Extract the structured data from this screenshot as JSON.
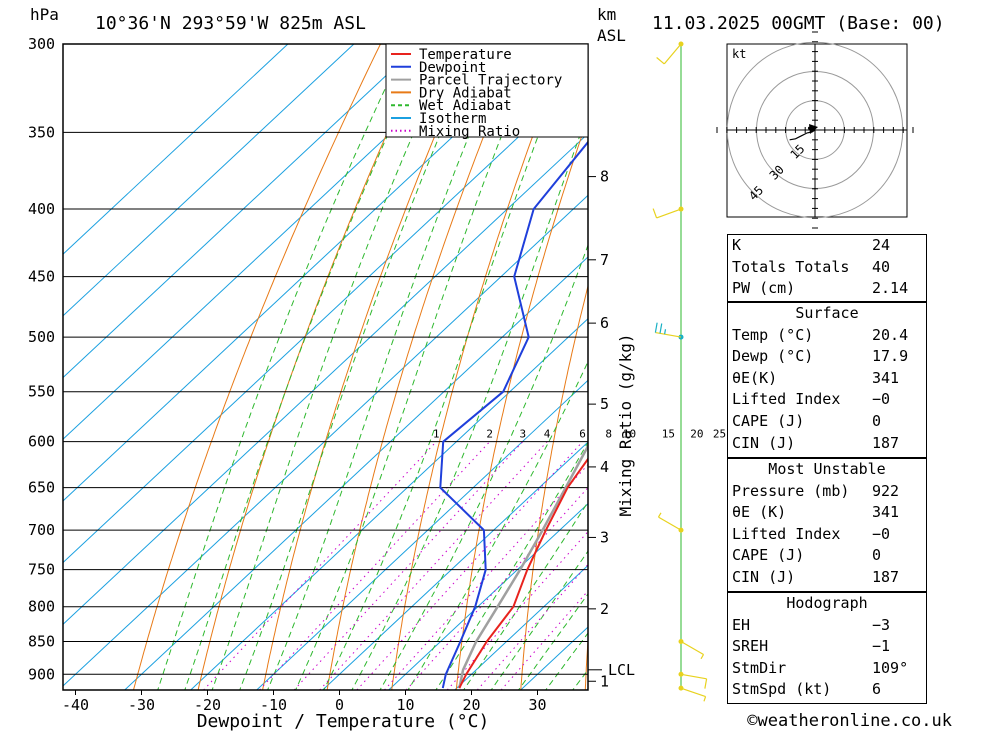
{
  "header": {
    "pressure_unit": "hPa",
    "location": "10°36'N 293°59'W 825m ASL",
    "height_unit_1": "km",
    "height_unit_2": "ASL",
    "valid_time": "11.03.2025 00GMT (Base: 00)"
  },
  "chart_data": {
    "type": "skew-t",
    "xlabel": "Dewpoint / Temperature (°C)",
    "ylabel": "hPa",
    "right_axis_label": "Mixing Ratio (g/kg)",
    "x_ticks": [
      -40,
      -30,
      -20,
      -10,
      0,
      10,
      20,
      30
    ],
    "p_ticks": [
      300,
      350,
      400,
      450,
      500,
      550,
      600,
      650,
      700,
      750,
      800,
      850,
      900
    ],
    "km_ticks": [
      {
        "km": "8",
        "p": 378
      },
      {
        "km": "7",
        "p": 437
      },
      {
        "km": "6",
        "p": 488
      },
      {
        "km": "5",
        "p": 562
      },
      {
        "km": "4",
        "p": 627
      },
      {
        "km": "3",
        "p": 709
      },
      {
        "km": "2",
        "p": 803
      },
      {
        "km": "1",
        "p": 911
      }
    ],
    "lcl_label": "LCL",
    "lcl_p": 893,
    "mixing_ratio_labels": [
      "1",
      "2",
      "3",
      "4",
      "6",
      "8",
      "10",
      "15",
      "20",
      "25"
    ],
    "legend": [
      {
        "name": "Temperature",
        "color": "#e8231e",
        "style": "solid"
      },
      {
        "name": "Dewpoint",
        "color": "#1f3fdb",
        "style": "solid"
      },
      {
        "name": "Parcel Trajectory",
        "color": "#a0a0a0",
        "style": "solid"
      },
      {
        "name": "Dry Adiabat",
        "color": "#e87a17",
        "style": "solid"
      },
      {
        "name": "Wet Adiabat",
        "color": "#2eb82e",
        "style": "dashed"
      },
      {
        "name": "Isotherm",
        "color": "#1ba0e0",
        "style": "solid"
      },
      {
        "name": "Mixing Ratio",
        "color": "#cc00cc",
        "style": "dotted"
      }
    ],
    "series": [
      {
        "name": "Temperature",
        "points": [
          [
            922,
            20.4
          ],
          [
            900,
            19.2
          ],
          [
            850,
            17.0
          ],
          [
            800,
            15.4
          ],
          [
            750,
            11.5
          ],
          [
            700,
            7.9
          ],
          [
            650,
            4.3
          ],
          [
            600,
            1.8
          ],
          [
            550,
            -0.9
          ],
          [
            500,
            -6.3
          ],
          [
            450,
            -11.5
          ],
          [
            400,
            -18.2
          ],
          [
            350,
            -26.0
          ],
          [
            300,
            -35.5
          ]
        ]
      },
      {
        "name": "Dewpoint",
        "points": [
          [
            922,
            17.9
          ],
          [
            900,
            16.1
          ],
          [
            850,
            13.0
          ],
          [
            800,
            9.6
          ],
          [
            750,
            5.2
          ],
          [
            700,
            -1.5
          ],
          [
            650,
            -15.0
          ],
          [
            600,
            -22.0
          ],
          [
            550,
            -21.0
          ],
          [
            500,
            -26.0
          ],
          [
            450,
            -38.0
          ],
          [
            400,
            -46.0
          ],
          [
            350,
            -49.0
          ],
          [
            300,
            -56.0
          ]
        ]
      },
      {
        "name": "Parcel Trajectory",
        "points": [
          [
            922,
            20.4
          ],
          [
            893,
            18.0
          ],
          [
            850,
            15.4
          ],
          [
            800,
            13.0
          ],
          [
            750,
            10.4
          ],
          [
            700,
            7.4
          ],
          [
            650,
            4.0
          ],
          [
            600,
            0.3
          ],
          [
            550,
            -3.7
          ],
          [
            500,
            -8.4
          ],
          [
            450,
            -13.8
          ],
          [
            400,
            -20.5
          ],
          [
            350,
            -28.6
          ],
          [
            320,
            -33.5
          ]
        ]
      }
    ],
    "wind_barbs": [
      {
        "p": 922,
        "dir": 109,
        "spd": 6
      },
      {
        "p": 900,
        "dir": 100,
        "spd": 10
      },
      {
        "p": 850,
        "dir": 120,
        "spd": 5
      },
      {
        "p": 700,
        "dir": 300,
        "spd": 5
      },
      {
        "p": 500,
        "dir": 280,
        "spd": 25
      },
      {
        "p": 400,
        "dir": 250,
        "spd": 10
      },
      {
        "p": 300,
        "dir": 220,
        "spd": 10
      }
    ],
    "hodograph": {
      "unit": "kt",
      "ring_labels": [
        "15",
        "30",
        "45"
      ],
      "points": [
        [
          -1.5,
          -1.0
        ],
        [
          -4.0,
          -1.5
        ],
        [
          -7.0,
          -3.0
        ],
        [
          -10.0,
          -4.5
        ],
        [
          -13.0,
          -5.0
        ]
      ],
      "storm_motion": {
        "dir": 109,
        "spd": 6
      }
    }
  },
  "indices": {
    "rows": [
      {
        "label": "K",
        "value": "24"
      },
      {
        "label": "Totals Totals",
        "value": "40"
      },
      {
        "label": "PW (cm)",
        "value": "2.14"
      }
    ]
  },
  "surface": {
    "title": "Surface",
    "rows": [
      {
        "label": "Temp (°C)",
        "value": "20.4"
      },
      {
        "label": "Dewp (°C)",
        "value": "17.9"
      },
      {
        "label": "θE(K)",
        "value": "341"
      },
      {
        "label": "Lifted Index",
        "value": "−0"
      },
      {
        "label": "CAPE (J)",
        "value": "0"
      },
      {
        "label": "CIN (J)",
        "value": "187"
      }
    ]
  },
  "most_unstable": {
    "title": "Most Unstable",
    "rows": [
      {
        "label": "Pressure (mb)",
        "value": "922"
      },
      {
        "label": "θE (K)",
        "value": "341"
      },
      {
        "label": "Lifted Index",
        "value": "−0"
      },
      {
        "label": "CAPE (J)",
        "value": "0"
      },
      {
        "label": "CIN (J)",
        "value": "187"
      }
    ]
  },
  "hodograph_table": {
    "title": "Hodograph",
    "rows": [
      {
        "label": "EH",
        "value": "−3"
      },
      {
        "label": "SREH",
        "value": "−1"
      },
      {
        "label": "StmDir",
        "value": "109°"
      },
      {
        "label": "StmSpd (kt)",
        "value": "6"
      }
    ]
  },
  "footer": {
    "copyright": "©weatheronline.co.uk"
  }
}
